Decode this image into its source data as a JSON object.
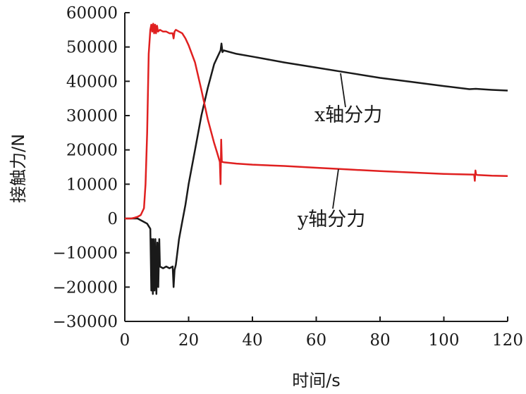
{
  "chart_data": {
    "type": "line",
    "title": "",
    "xlabel": "时间/s",
    "ylabel": "接触力/N",
    "xlim": [
      0,
      120
    ],
    "ylim": [
      -30000,
      60000
    ],
    "xticks": [
      0,
      20,
      40,
      60,
      80,
      100,
      120
    ],
    "yticks": [
      -30000,
      -20000,
      -10000,
      0,
      10000,
      20000,
      30000,
      40000,
      50000,
      60000
    ],
    "xtick_labels": [
      "0",
      "20",
      "40",
      "60",
      "80",
      "100",
      "120"
    ],
    "ytick_labels": [
      "−30000",
      "−20000",
      "−10000",
      "0",
      "10000",
      "20000",
      "30000",
      "40000",
      "50000",
      "60000"
    ],
    "grid": false,
    "legend": "none",
    "annotations": [
      {
        "text": "x轴分力",
        "series": "x"
      },
      {
        "text": "y轴分力",
        "series": "y"
      }
    ],
    "series": [
      {
        "name": "x轴分力",
        "color": "#1a1a1a",
        "x": [
          0,
          4,
          6,
          7,
          8,
          8.3,
          8.5,
          8.8,
          9,
          9.3,
          9.6,
          9.9,
          10.2,
          10.5,
          10.8,
          11,
          12,
          13,
          14,
          15,
          15.3,
          15.6,
          16,
          17,
          18,
          19,
          20,
          22,
          24,
          26,
          28,
          29,
          30,
          30.3,
          30.6,
          31,
          35,
          40,
          50,
          60,
          70,
          80,
          90,
          100,
          108,
          110,
          115,
          120
        ],
        "y": [
          0,
          0,
          -1000,
          -1500,
          -3000,
          -21000,
          -6000,
          -22000,
          -6000,
          -21000,
          -6000,
          -22000,
          -7000,
          -20000,
          -6000,
          -14000,
          -14500,
          -14000,
          -14500,
          -14000,
          -20000,
          -15000,
          -13500,
          -6000,
          -1000,
          4000,
          10000,
          20000,
          30000,
          38000,
          45000,
          47000,
          49000,
          51000,
          48500,
          49000,
          48000,
          47200,
          45500,
          44000,
          42500,
          41000,
          39800,
          38600,
          37700,
          37800,
          37500,
          37300
        ]
      },
      {
        "name": "y轴分力",
        "color": "#e02020",
        "x": [
          0,
          2,
          3,
          4,
          5,
          6,
          6.5,
          7,
          7.5,
          8,
          8.3,
          8.6,
          8.9,
          9.2,
          9.5,
          9.8,
          10.1,
          10.4,
          11,
          12,
          13,
          14,
          15,
          15.3,
          15.6,
          16,
          17,
          18,
          19,
          20,
          22,
          24,
          26,
          28,
          29,
          29.8,
          30,
          30.2,
          30.4,
          30.6,
          31,
          35,
          40,
          50,
          60,
          70,
          80,
          90,
          100,
          109.5,
          109.7,
          109.9,
          110.1,
          110.5,
          115,
          120
        ],
        "y": [
          0,
          0,
          200,
          500,
          1000,
          3000,
          10000,
          25000,
          48000,
          55000,
          56500,
          54500,
          56800,
          54000,
          56500,
          54000,
          56200,
          54500,
          55000,
          54500,
          54500,
          54000,
          54000,
          52500,
          54500,
          55000,
          54500,
          54000,
          52500,
          50500,
          45500,
          37500,
          29000,
          22000,
          19000,
          16500,
          10000,
          23000,
          16500,
          16500,
          16400,
          16000,
          15700,
          15300,
          14800,
          14300,
          13800,
          13400,
          13000,
          12800,
          11000,
          14000,
          12800,
          12700,
          12500,
          12400
        ]
      }
    ]
  }
}
